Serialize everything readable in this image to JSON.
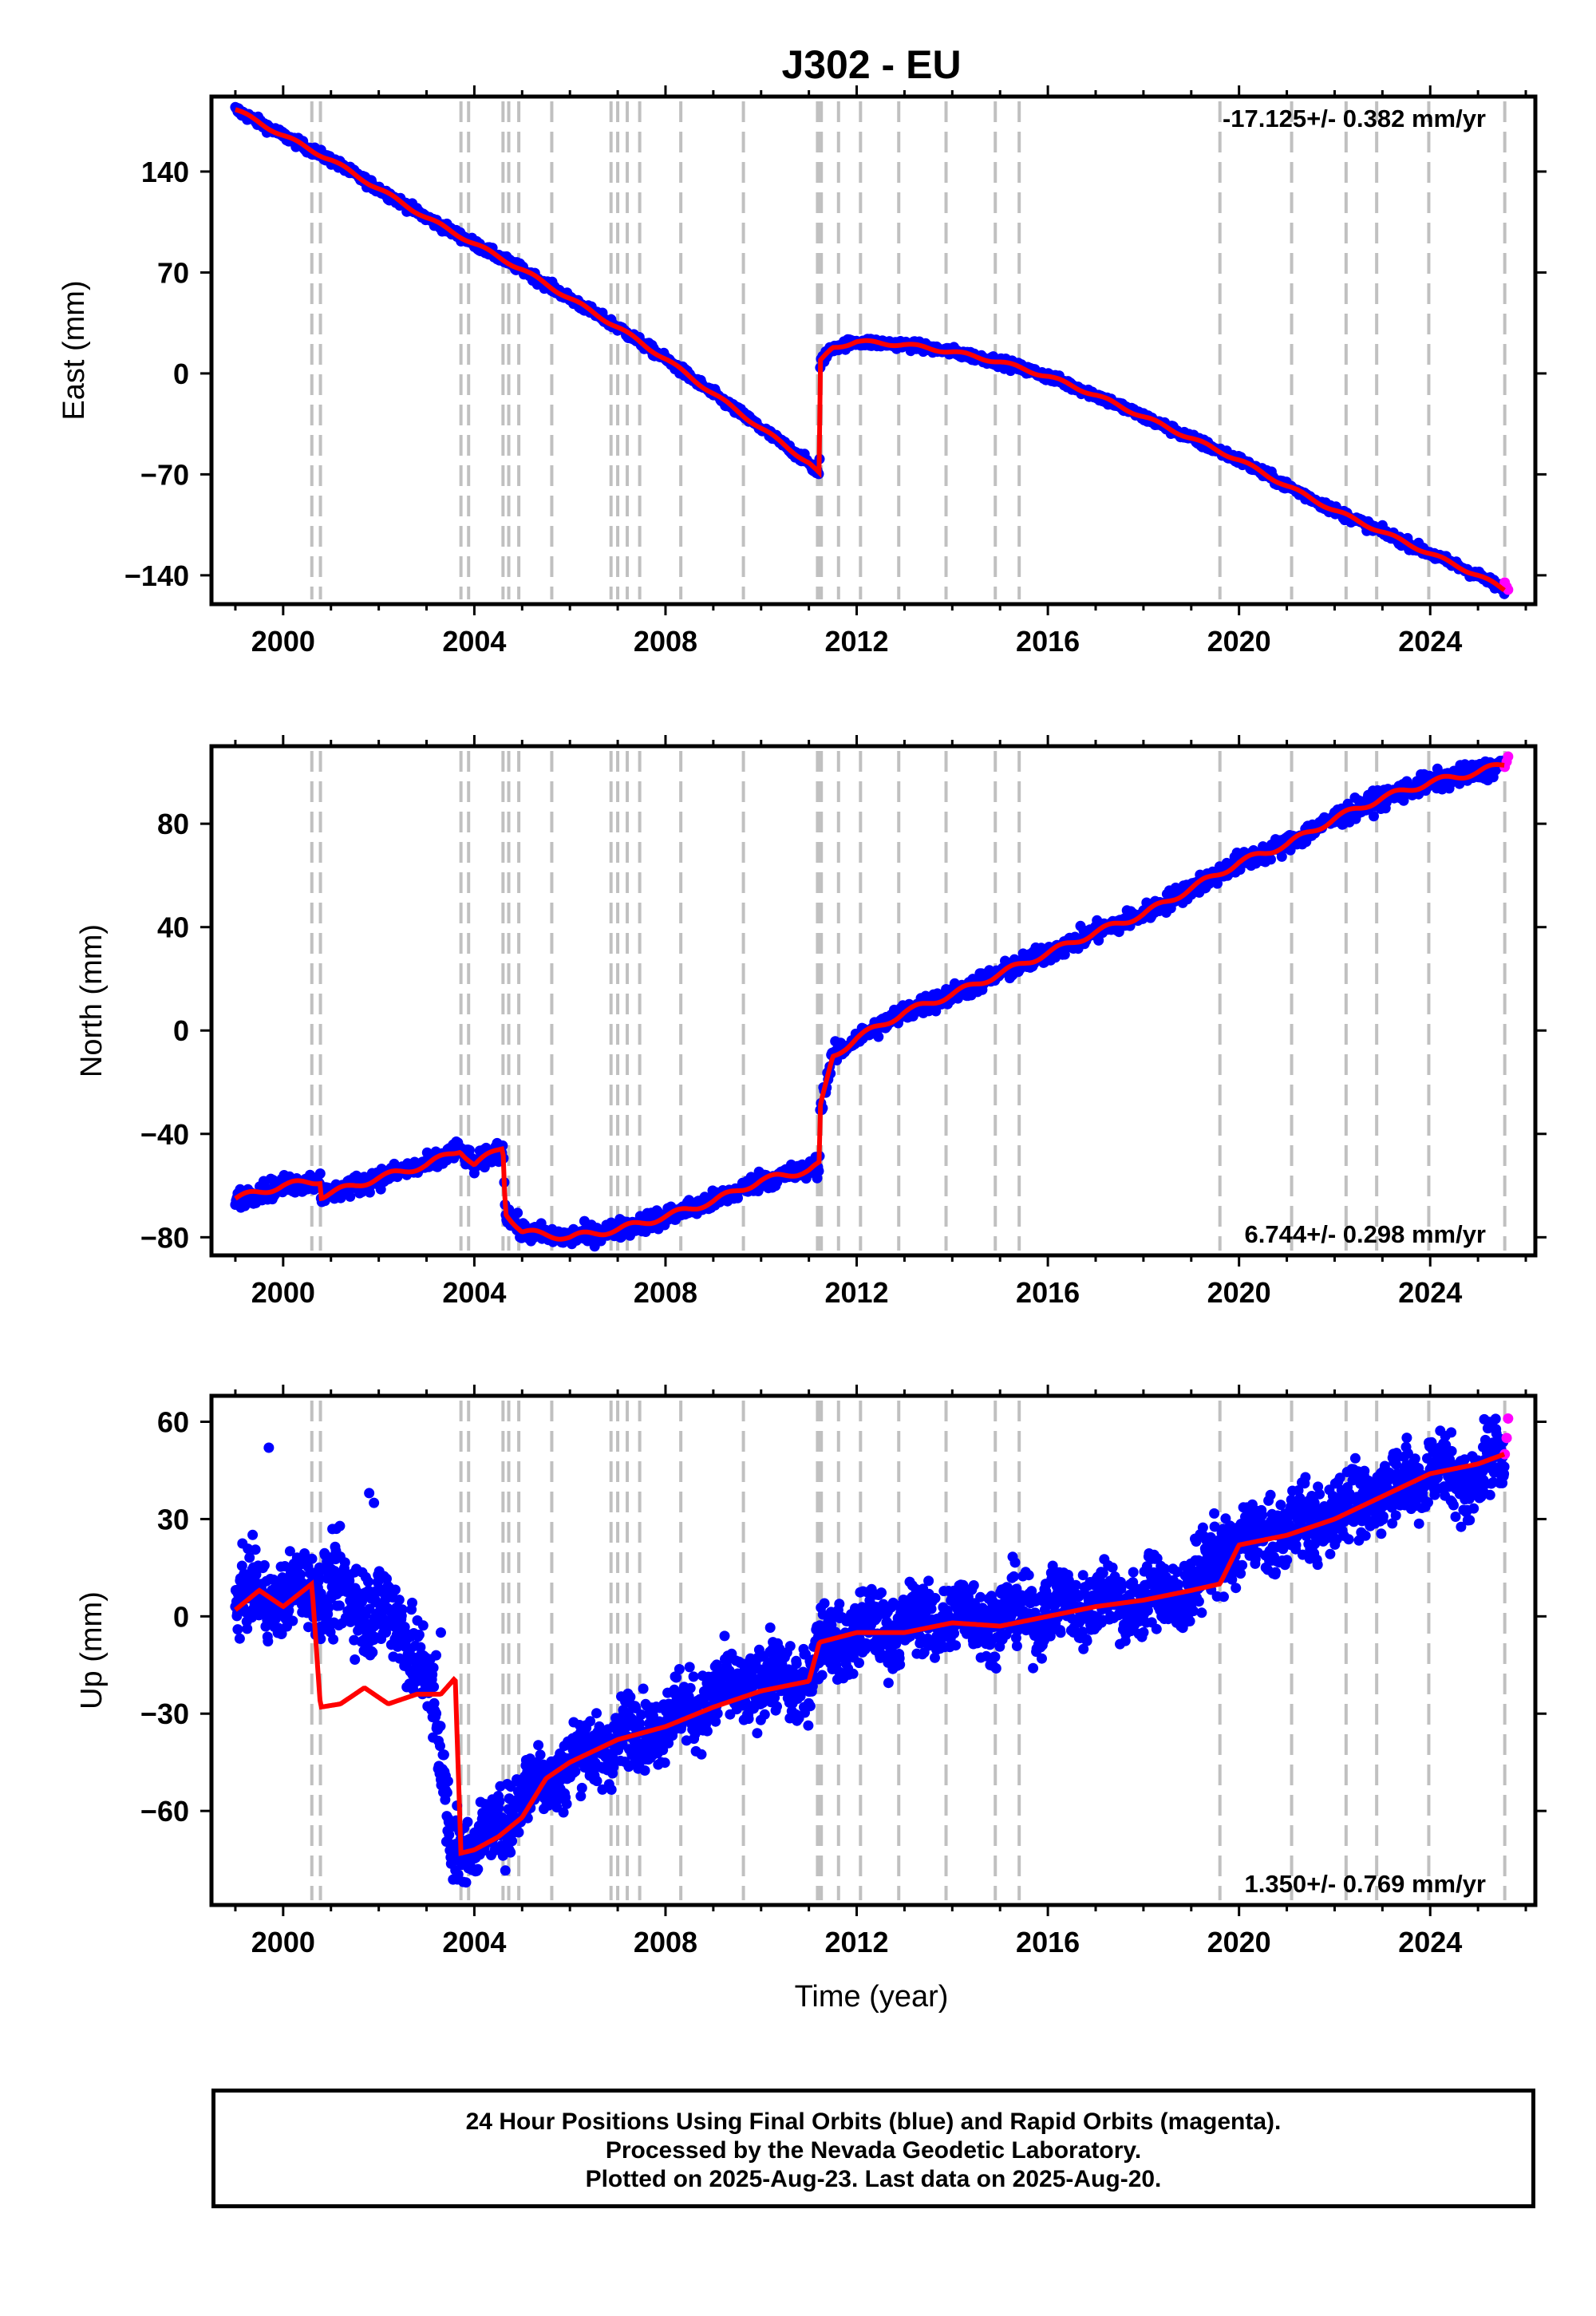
{
  "title": "J302 - EU",
  "x_axis_label": "Time (year)",
  "caption": [
    "24 Hour Positions Using Final Orbits (blue) and Rapid Orbits (magenta).",
    "Processed by the Nevada Geodetic Laboratory.",
    "Plotted on 2025-Aug-23. Last data on 2025-Aug-20."
  ],
  "colors": {
    "final_orbits": "#0000ff",
    "rapid_orbits": "#ff00ff",
    "model": "#ff0000",
    "event_lines": "#c0c0c0",
    "frame": "#000000"
  },
  "event_years": [
    2000.6,
    2000.78,
    2003.72,
    2003.88,
    2004.6,
    2004.72,
    2004.93,
    2005.62,
    2006.86,
    2007.0,
    2007.2,
    2007.46,
    2008.32,
    2009.63,
    2011.18,
    2011.22,
    2011.26,
    2011.62,
    2012.08,
    2012.88,
    2013.87,
    2014.9,
    2015.4,
    2019.6,
    2021.1,
    2022.24,
    2022.88,
    2023.97,
    2025.56
  ],
  "chart_data": [
    {
      "type": "scatter",
      "component": "east",
      "ylabel": "East (mm)",
      "rate_label": "-17.125+/- 0.382 mm/yr",
      "xlim": [
        1998.5,
        2026.2
      ],
      "ylim": [
        -160,
        192
      ],
      "x_ticks": [
        "2000",
        "2004",
        "2008",
        "2012",
        "2016",
        "2020",
        "2024"
      ],
      "y_ticks": [
        "140",
        "70",
        "0",
        "−70",
        "−140"
      ],
      "x_tick_values": [
        2000,
        2004,
        2008,
        2012,
        2016,
        2020,
        2024
      ],
      "y_tick_values": [
        140,
        70,
        0,
        -70,
        -140
      ],
      "series": [
        {
          "role": "final",
          "x": [
            1999.0,
            2000.0,
            2001.0,
            2002.0,
            2003.0,
            2004.0,
            2005.0,
            2006.0,
            2007.0,
            2008.0,
            2009.0,
            2010.0,
            2011.0,
            2011.22,
            2011.24,
            2011.5,
            2012.0,
            2013.0,
            2014.0,
            2015.0,
            2016.0,
            2017.0,
            2018.0,
            2019.0,
            2020.0,
            2021.0,
            2022.0,
            2023.0,
            2024.0,
            2025.0,
            2025.55
          ],
          "y": [
            183,
            165,
            148,
            128,
            108,
            90,
            72,
            52,
            32,
            10,
            -14,
            -38,
            -62,
            -70,
            8,
            18,
            22,
            20,
            15,
            8,
            -2,
            -15,
            -30,
            -45,
            -60,
            -78,
            -95,
            -110,
            -125,
            -140,
            -150
          ]
        },
        {
          "role": "rapid",
          "x": [
            2025.56,
            2025.6,
            2025.63
          ],
          "y": [
            -145,
            -148,
            -150
          ]
        }
      ]
    },
    {
      "type": "scatter",
      "component": "north",
      "ylabel": "North (mm)",
      "rate_label": "6.744+/- 0.298 mm/yr",
      "xlim": [
        1998.5,
        2026.2
      ],
      "ylim": [
        -87,
        110
      ],
      "x_ticks": [
        "2000",
        "2004",
        "2008",
        "2012",
        "2016",
        "2020",
        "2024"
      ],
      "y_ticks": [
        "80",
        "40",
        "0",
        "−40",
        "−80"
      ],
      "x_tick_values": [
        2000,
        2004,
        2008,
        2012,
        2016,
        2020,
        2024
      ],
      "y_tick_values": [
        80,
        40,
        0,
        -40,
        -80
      ],
      "series": [
        {
          "role": "final",
          "x": [
            1999.0,
            2000.0,
            2000.78,
            2000.8,
            2001.5,
            2002.0,
            2003.0,
            2003.7,
            2004.0,
            2004.6,
            2004.65,
            2005.0,
            2006.0,
            2007.0,
            2008.0,
            2009.0,
            2010.0,
            2011.0,
            2011.22,
            2011.24,
            2011.5,
            2012.0,
            2013.0,
            2014.0,
            2015.0,
            2016.0,
            2017.0,
            2018.0,
            2019.0,
            2020.0,
            2021.0,
            2022.0,
            2023.0,
            2024.0,
            2025.0,
            2025.55
          ],
          "y": [
            -65,
            -60,
            -58,
            -64,
            -60,
            -57,
            -52,
            -46,
            -52,
            -45,
            -70,
            -78,
            -80,
            -77,
            -72,
            -66,
            -58,
            -54,
            -52,
            -30,
            -10,
            -3,
            7,
            14,
            22,
            30,
            38,
            45,
            55,
            65,
            72,
            82,
            90,
            96,
            100,
            103
          ]
        },
        {
          "role": "rapid",
          "x": [
            2025.56,
            2025.6,
            2025.63
          ],
          "y": [
            102,
            104,
            106
          ]
        }
      ]
    },
    {
      "type": "scatter",
      "component": "up",
      "ylabel": "Up (mm)",
      "rate_label": "1.350+/- 0.769 mm/yr",
      "xlim": [
        1998.5,
        2026.2
      ],
      "ylim": [
        -89,
        68
      ],
      "x_ticks": [
        "2000",
        "2004",
        "2008",
        "2012",
        "2016",
        "2020",
        "2024"
      ],
      "y_ticks": [
        "60",
        "30",
        "0",
        "−30",
        "−60"
      ],
      "x_tick_values": [
        2000,
        2004,
        2008,
        2012,
        2016,
        2020,
        2024
      ],
      "y_tick_values": [
        60,
        30,
        0,
        -30,
        -60
      ],
      "series": [
        {
          "role": "final",
          "x": [
            1999.0,
            1999.5,
            2000.0,
            2000.6,
            2001.0,
            2001.5,
            2002.0,
            2002.5,
            2003.0,
            2003.5,
            2004.0,
            2004.5,
            2005.0,
            2006.0,
            2007.0,
            2008.0,
            2009.0,
            2010.0,
            2011.0,
            2011.3,
            2012.0,
            2013.0,
            2014.0,
            2015.0,
            2016.0,
            2017.0,
            2018.0,
            2019.0,
            2019.6,
            2020.0,
            2021.0,
            2022.0,
            2023.0,
            2024.0,
            2024.8,
            2025.55
          ],
          "y": [
            3,
            8,
            5,
            10,
            8,
            5,
            3,
            -5,
            -15,
            -68,
            -72,
            -65,
            -55,
            -45,
            -38,
            -32,
            -25,
            -20,
            -20,
            -8,
            -5,
            -3,
            0,
            0,
            2,
            5,
            5,
            8,
            20,
            22,
            27,
            32,
            38,
            45,
            42,
            50
          ]
        },
        {
          "role": "model",
          "x": [
            1999.0,
            1999.5,
            2000.0,
            2000.6,
            2000.78,
            2001.2,
            2001.7,
            2002.2,
            2002.8,
            2003.3,
            2003.6,
            2003.72,
            2004.0,
            2004.5,
            2005.0,
            2005.5,
            2006.0,
            2007.0,
            2008.0,
            2009.0,
            2010.0,
            2011.0,
            2011.22,
            2012.0,
            2013.0,
            2014.0,
            2015.0,
            2016.0,
            2017.0,
            2018.0,
            2019.0,
            2019.6,
            2020.0,
            2021.0,
            2022.0,
            2023.0,
            2024.0,
            2025.0,
            2025.55
          ],
          "y": [
            2,
            8,
            3,
            10,
            -28,
            -27,
            -22,
            -27,
            -24,
            -24,
            -19,
            -73,
            -72,
            -68,
            -62,
            -50,
            -45,
            -38,
            -34,
            -28,
            -23,
            -20,
            -8,
            -5,
            -5,
            -2,
            -3,
            0,
            3,
            5,
            8,
            10,
            22,
            25,
            30,
            37,
            44,
            47,
            50
          ]
        },
        {
          "role": "rapid",
          "x": [
            2025.56,
            2025.6,
            2025.63
          ],
          "y": [
            50,
            55,
            61
          ]
        }
      ]
    }
  ]
}
